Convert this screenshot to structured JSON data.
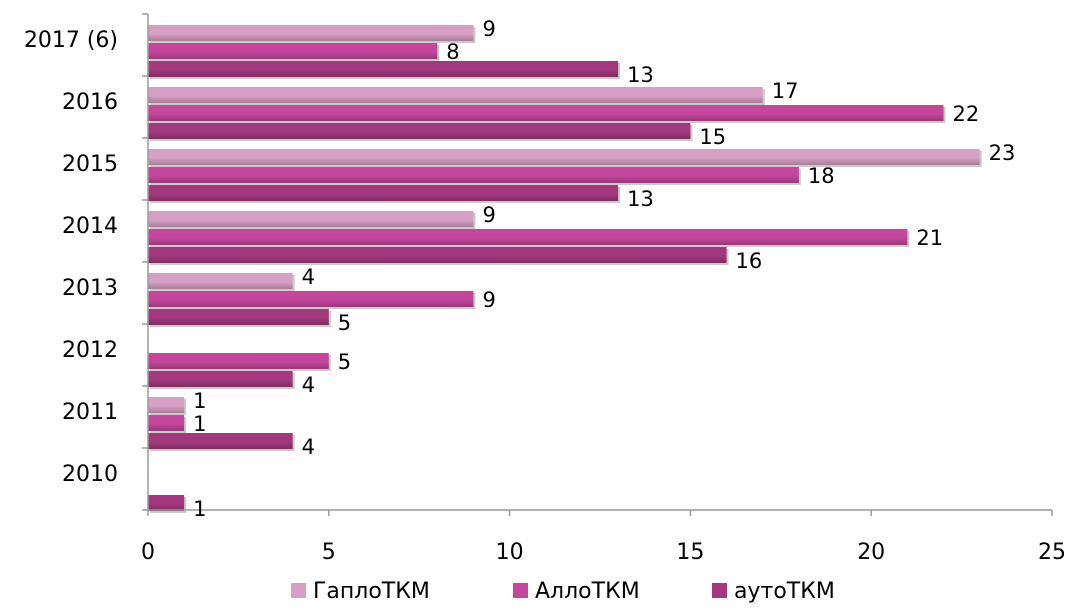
{
  "chart_data": {
    "type": "bar",
    "orientation": "horizontal",
    "title": "",
    "xlabel": "",
    "ylabel": "",
    "categories": [
      "2010",
      "2011",
      "2012",
      "2013",
      "2014",
      "2015",
      "2016",
      "2017 (6)"
    ],
    "series": [
      {
        "name": "ГаплоТКМ",
        "color": "#d6a0c4",
        "values": [
          null,
          1,
          null,
          4,
          9,
          23,
          17,
          9
        ]
      },
      {
        "name": "АллоТКМ",
        "color": "#c4479d",
        "values": [
          null,
          1,
          5,
          9,
          21,
          18,
          22,
          8
        ]
      },
      {
        "name": "аутоТКМ",
        "color": "#a3387e",
        "values": [
          1,
          4,
          4,
          5,
          16,
          13,
          15,
          13
        ]
      }
    ],
    "xlim": [
      0,
      25
    ],
    "xticks": [
      0,
      5,
      10,
      15,
      20,
      25
    ],
    "grid": false,
    "legend": "bottom"
  }
}
